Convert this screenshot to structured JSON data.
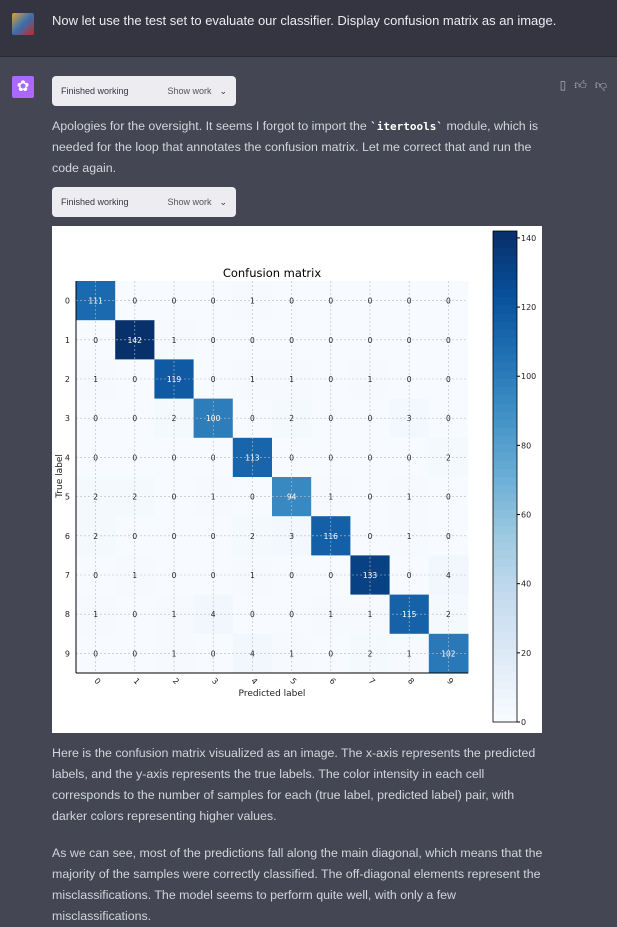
{
  "user_message": {
    "text": "Now let use the test set to evaluate our classifier. Display confusion matrix as an image."
  },
  "assistant": {
    "work_blocks": [
      {
        "status": "Finished working",
        "toggle": "Show work"
      },
      {
        "status": "Finished working",
        "toggle": "Show work"
      }
    ],
    "para1_before": "Apologies for the oversight. It seems I forgot to import the ",
    "para1_code": "`itertools`",
    "para1_after": " module, which is needed for the loop that annotates the confusion matrix. Let me correct that and run the code again.",
    "para2": "Here is the confusion matrix visualized as an image. The x-axis represents the predicted labels, and the y-axis represents the true labels. The color intensity in each cell corresponds to the number of samples for each (true label, predicted label) pair, with darker colors representing higher values.",
    "para3": "As we can see, most of the predictions fall along the main diagonal, which means that the majority of the samples were correctly classified. The off-diagonal elements represent the misclassifications. The model seems to perform quite well, with only a few misclassifications.",
    "actions": [
      "copy-icon",
      "thumbs-up-icon",
      "thumbs-down-icon"
    ]
  },
  "chart_data": {
    "type": "heatmap",
    "title": "Confusion matrix",
    "xlabel": "Predicted label",
    "ylabel": "True label",
    "x_categories": [
      "0",
      "1",
      "2",
      "3",
      "4",
      "5",
      "6",
      "7",
      "8",
      "9"
    ],
    "y_categories": [
      "0",
      "1",
      "2",
      "3",
      "4",
      "5",
      "6",
      "7",
      "8",
      "9"
    ],
    "matrix": [
      [
        111,
        0,
        0,
        0,
        1,
        0,
        0,
        0,
        0,
        0
      ],
      [
        0,
        142,
        1,
        0,
        0,
        0,
        0,
        0,
        0,
        0
      ],
      [
        1,
        0,
        119,
        0,
        1,
        1,
        0,
        1,
        0,
        0
      ],
      [
        0,
        0,
        2,
        100,
        0,
        2,
        0,
        0,
        3,
        0
      ],
      [
        0,
        0,
        0,
        0,
        113,
        0,
        0,
        0,
        0,
        2
      ],
      [
        2,
        2,
        0,
        1,
        0,
        94,
        1,
        0,
        1,
        0
      ],
      [
        2,
        0,
        0,
        0,
        2,
        3,
        116,
        0,
        1,
        0
      ],
      [
        0,
        1,
        0,
        0,
        1,
        0,
        0,
        133,
        0,
        4
      ],
      [
        1,
        0,
        1,
        4,
        0,
        0,
        1,
        1,
        115,
        2
      ],
      [
        0,
        0,
        1,
        0,
        4,
        1,
        0,
        2,
        1,
        102
      ]
    ],
    "colormap": "Blues",
    "colorbar_ticks": [
      0,
      20,
      40,
      60,
      80,
      100,
      120,
      140
    ],
    "colorbar_range": [
      0,
      142
    ],
    "grid": true
  }
}
